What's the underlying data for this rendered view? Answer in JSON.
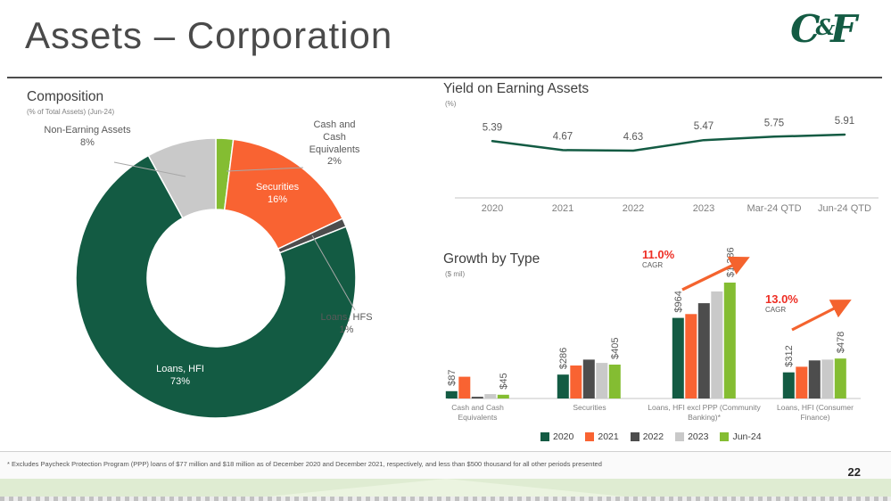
{
  "slide": {
    "title": "Assets – Corporation",
    "logo_text_c": "C",
    "logo_text_amp": "&",
    "logo_text_f": "F",
    "page_number": "22",
    "footnote": "* Excludes Paycheck Protection Program (PPP) loans of $77 million and $18 million as of December 2020 and December 2021, respectively, and less than $500 thousand for all other periods presented"
  },
  "colors": {
    "brand_green": "#135B43",
    "orange": "#F96332",
    "dark_gray": "#4D4D4D",
    "light_gray": "#C9C9C9",
    "lime": "#84BD32",
    "cagr_red": "#EE2E24",
    "arrow_orange": "#F4632E"
  },
  "chart_data": [
    {
      "type": "pie",
      "donut": true,
      "title": "Composition",
      "subtitle": "(% of Total Assets) (Jun-24)",
      "slices": [
        {
          "label": "Cash and Cash Equivalents",
          "pct_label": "2%",
          "value": 2,
          "color": "#84BD32",
          "label_placement": "outside"
        },
        {
          "label": "Securities",
          "pct_label": "16%",
          "value": 16,
          "color": "#F96332",
          "label_placement": "inside"
        },
        {
          "label": "Loans, HFS",
          "pct_label": "1%",
          "value": 1,
          "color": "#4D4D4D",
          "label_placement": "outside"
        },
        {
          "label": "Loans, HFI",
          "pct_label": "73%",
          "value": 73,
          "color": "#135B43",
          "label_placement": "inside"
        },
        {
          "label": "Non-Earning Assets",
          "pct_label": "8%",
          "value": 8,
          "color": "#C9C9C9",
          "label_placement": "outside"
        }
      ]
    },
    {
      "type": "line",
      "title": "Yield on Earning Assets",
      "unit_label": "(%)",
      "categories": [
        "2020",
        "2021",
        "2022",
        "2023",
        "Mar-24 QTD",
        "Jun-24 QTD"
      ],
      "values": [
        5.39,
        4.67,
        4.63,
        5.47,
        5.75,
        5.91
      ],
      "value_labels": [
        "5.39",
        "4.67",
        "4.63",
        "5.47",
        "5.75",
        "5.91"
      ],
      "line_color": "#135B43",
      "grid": false,
      "legend_position": "none"
    },
    {
      "type": "bar",
      "title": "Growth by Type",
      "unit_label": "($ mil)",
      "categories": [
        "Cash and Cash Equivalents",
        "Securities",
        "Loans, HFI excl PPP (Community Banking)*",
        "Loans, HFI (Consumer Finance)"
      ],
      "series": [
        {
          "name": "2020",
          "color": "#135B43",
          "values": [
            87,
            286,
            964,
            312
          ],
          "labels": [
            "$87",
            "$286",
            "$964",
            "$312"
          ]
        },
        {
          "name": "2021",
          "color": "#F96332",
          "values": [
            260,
            395,
            1010,
            380
          ],
          "labels": [
            null,
            null,
            null,
            null
          ]
        },
        {
          "name": "2022",
          "color": "#4D4D4D",
          "values": [
            20,
            465,
            1140,
            455
          ],
          "labels": [
            null,
            null,
            null,
            null
          ]
        },
        {
          "name": "2023",
          "color": "#C9C9C9",
          "values": [
            52,
            425,
            1280,
            465
          ],
          "labels": [
            null,
            null,
            null,
            null
          ]
        },
        {
          "name": "Jun-24",
          "color": "#84BD32",
          "values": [
            45,
            405,
            1386,
            478
          ],
          "labels": [
            "$45",
            "$405",
            "$1,386",
            "$478"
          ]
        }
      ],
      "annotations": [
        {
          "rate": "11.0%",
          "caption": "CAGR",
          "category": "Loans, HFI excl PPP (Community Banking)*"
        },
        {
          "rate": "13.0%",
          "caption": "CAGR",
          "category": "Loans, HFI (Consumer Finance)"
        }
      ],
      "ylim": [
        0,
        1450
      ],
      "legend_position": "bottom"
    }
  ]
}
